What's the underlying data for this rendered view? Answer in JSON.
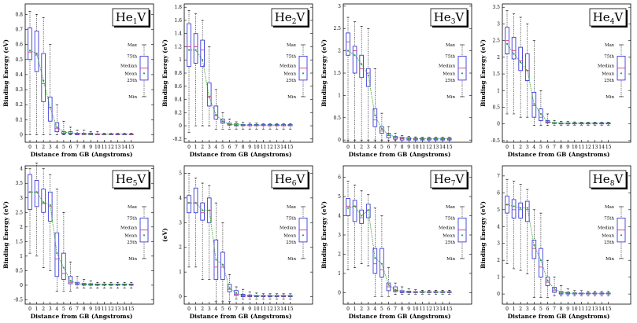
{
  "colors": {
    "box": "#3b3bd9",
    "median": "#d63a8a",
    "mean_line": "#2e9e2e",
    "whisker": "#000000"
  },
  "legend": {
    "max": "Max",
    "p75": "75th",
    "median": "Median",
    "mean": "Mean",
    "p25": "25th",
    "min": "Min"
  },
  "chart_data": [
    {
      "type": "box",
      "title": "He1V",
      "title_main": "He",
      "title_sub": "1",
      "title_tail": "V",
      "xlabel": "Distance from GB (Angstroms)",
      "ylabel": "Binding Energy (eV)",
      "x": [
        0,
        1,
        2,
        3,
        4,
        5,
        6,
        7,
        8,
        9,
        10,
        11,
        12,
        13,
        14,
        15
      ],
      "ylim": [
        -0.05,
        0.87
      ],
      "yticks": [
        0,
        0.1,
        0.2,
        0.3,
        0.4,
        0.5,
        0.6,
        0.7,
        0.8
      ],
      "ytick_labels": [
        "0",
        "0.1",
        "0.2",
        "0.3",
        "0.4",
        "0.5",
        "0.6",
        "0.7",
        "0.8"
      ],
      "min": [
        0,
        0,
        0,
        0,
        0,
        0,
        0,
        0,
        0,
        0,
        0,
        0,
        0,
        0,
        0,
        0
      ],
      "q1": [
        0.5,
        0.42,
        0.22,
        0.09,
        0.02,
        0.005,
        0.005,
        0,
        0,
        0,
        0,
        0,
        0,
        0,
        0,
        0
      ],
      "median": [
        0.55,
        0.53,
        0.34,
        0.18,
        0.04,
        0.01,
        0.01,
        0.005,
        0,
        0,
        0,
        0,
        0,
        0,
        0,
        0
      ],
      "mean": [
        0.56,
        0.54,
        0.36,
        0.18,
        0.05,
        0.02,
        0.01,
        0.01,
        0.005,
        0.005,
        0.005,
        0.005,
        0.005,
        0.005,
        0.005,
        0.005
      ],
      "q3": [
        0.71,
        0.69,
        0.54,
        0.25,
        0.08,
        0.02,
        0.02,
        0.01,
        0.01,
        0.01,
        0.005,
        0.005,
        0.005,
        0.005,
        0.005,
        0.005
      ],
      "max": [
        0.82,
        0.8,
        0.78,
        0.6,
        0.2,
        0.09,
        0.05,
        0.03,
        0.03,
        0.02,
        0.02,
        0.01,
        0.01,
        0.01,
        0.01,
        0.01
      ]
    },
    {
      "type": "box",
      "title": "He2V",
      "title_main": "He",
      "title_sub": "2",
      "title_tail": "V",
      "xlabel": "Distance from GB (Angstroms)",
      "ylabel": "Binding Energy (eV)",
      "x": [
        0,
        1,
        2,
        3,
        4,
        5,
        6,
        7,
        8,
        9,
        10,
        11,
        12,
        13,
        14,
        15
      ],
      "ylim": [
        -0.25,
        1.85
      ],
      "yticks": [
        -0.2,
        0,
        0.2,
        0.4,
        0.6,
        0.8,
        1,
        1.2,
        1.4,
        1.6,
        1.8
      ],
      "ytick_labels": [
        "-0.2",
        "0",
        "0.2",
        "0.4",
        "0.6",
        "0.8",
        "1",
        "1.2",
        "1.4",
        "1.6",
        "1.8"
      ],
      "min": [
        -0.1,
        0,
        0,
        0,
        -0.05,
        -0.05,
        -0.05,
        -0.05,
        -0.05,
        -0.05,
        -0.05,
        -0.05,
        -0.05,
        -0.05,
        -0.05,
        -0.05
      ],
      "q1": [
        0.9,
        0.95,
        0.9,
        0.3,
        0.1,
        0.04,
        0.01,
        0,
        0,
        0,
        0,
        0,
        0,
        0,
        0,
        0
      ],
      "median": [
        1.2,
        1.2,
        1.15,
        0.45,
        0.15,
        0.06,
        0.02,
        0.01,
        0,
        0,
        0,
        0,
        0,
        0,
        0,
        0
      ],
      "mean": [
        1.15,
        1.15,
        1.0,
        0.43,
        0.17,
        0.07,
        0.02,
        0.02,
        0.01,
        0.01,
        0.01,
        0.01,
        0.01,
        0.01,
        0.01,
        0.01
      ],
      "q3": [
        1.55,
        1.4,
        1.3,
        0.65,
        0.3,
        0.1,
        0.04,
        0.03,
        0.02,
        0.02,
        0.02,
        0.02,
        0.02,
        0.02,
        0.02,
        0.02
      ],
      "max": [
        1.75,
        1.7,
        1.6,
        1.2,
        0.55,
        0.2,
        0.1,
        0.06,
        0.05,
        0.04,
        0.04,
        0.03,
        0.03,
        0.03,
        0.03,
        0.03
      ]
    },
    {
      "type": "box",
      "title": "He3V",
      "title_main": "He",
      "title_sub": "3",
      "title_tail": "V",
      "xlabel": "Distance from GB (Angstroms)",
      "ylabel": "Binding Energy (eV)",
      "x": [
        0,
        1,
        2,
        3,
        4,
        5,
        6,
        7,
        8,
        9,
        10,
        11,
        12,
        13,
        14,
        15
      ],
      "ylim": [
        -0.05,
        3.05
      ],
      "yticks": [
        0,
        0.5,
        1,
        1.5,
        2,
        2.5,
        3
      ],
      "ytick_labels": [
        "0",
        "0.5",
        "1",
        "1.5",
        "2",
        "2.5",
        "3"
      ],
      "min": [
        0,
        0,
        0,
        0,
        0,
        0,
        0,
        0,
        0,
        0,
        0,
        0,
        0,
        0,
        0,
        0
      ],
      "q1": [
        1.9,
        1.5,
        1.4,
        1.2,
        0.3,
        0.15,
        0.05,
        0.02,
        0,
        0,
        0,
        0,
        0,
        0,
        0,
        0
      ],
      "median": [
        2.2,
        2.0,
        1.6,
        1.5,
        0.45,
        0.2,
        0.1,
        0.05,
        0.03,
        0.02,
        0.02,
        0.02,
        0.02,
        0.02,
        0.02,
        0.02
      ],
      "mean": [
        2.0,
        1.9,
        1.7,
        1.45,
        0.55,
        0.25,
        0.12,
        0.07,
        0.05,
        0.04,
        0.03,
        0.03,
        0.03,
        0.03,
        0.03,
        0.03
      ],
      "q3": [
        2.4,
        2.1,
        1.9,
        1.6,
        0.7,
        0.3,
        0.15,
        0.08,
        0.06,
        0.05,
        0.04,
        0.04,
        0.04,
        0.04,
        0.04,
        0.04
      ],
      "max": [
        2.75,
        2.65,
        2.55,
        2.5,
        1.6,
        0.6,
        0.3,
        0.15,
        0.1,
        0.08,
        0.07,
        0.06,
        0.06,
        0.06,
        0.06,
        0.06
      ]
    },
    {
      "type": "box",
      "title": "He4V",
      "title_main": "He",
      "title_sub": "4",
      "title_tail": "V",
      "xlabel": "Distance from GB (Angstroms)",
      "ylabel": "Binding Energy (eV)",
      "x": [
        0,
        1,
        2,
        3,
        4,
        5,
        6,
        7,
        8,
        9,
        10,
        11,
        12,
        13,
        14,
        15
      ],
      "ylim": [
        -0.55,
        3.6
      ],
      "yticks": [
        -0.5,
        0,
        0.5,
        1,
        1.5,
        2,
        2.5,
        3,
        3.5
      ],
      "ytick_labels": [
        "-0.5",
        "0",
        "0.5",
        "1",
        "1.5",
        "2",
        "2.5",
        "3",
        "3.5"
      ],
      "min": [
        0.3,
        0.3,
        0.2,
        0.2,
        -0.05,
        -0.05,
        -0.05,
        -0.05,
        -0.05,
        -0.05,
        -0.05,
        -0.05,
        -0.05,
        -0.05,
        -0.05,
        -0.05
      ],
      "q1": [
        2.1,
        1.95,
        1.6,
        1.3,
        0.2,
        0.1,
        0.03,
        0.01,
        0,
        0,
        0,
        0,
        0,
        0,
        0,
        0
      ],
      "median": [
        2.5,
        2.2,
        1.9,
        1.6,
        0.55,
        0.2,
        0.05,
        0.02,
        0.01,
        0.01,
        0.01,
        0.01,
        0.01,
        0.01,
        0.01,
        0.01
      ],
      "mean": [
        2.4,
        2.1,
        1.85,
        1.6,
        0.6,
        0.3,
        0.07,
        0.03,
        0.02,
        0.02,
        0.02,
        0.02,
        0.02,
        0.02,
        0.02,
        0.02
      ],
      "q3": [
        2.9,
        2.6,
        2.3,
        2.1,
        0.95,
        0.45,
        0.1,
        0.04,
        0.03,
        0.03,
        0.03,
        0.03,
        0.03,
        0.03,
        0.03,
        0.03
      ],
      "max": [
        3.4,
        3.3,
        3.2,
        3.0,
        2.5,
        1.0,
        0.3,
        0.1,
        0.08,
        0.07,
        0.06,
        0.05,
        0.05,
        0.05,
        0.05,
        0.05
      ]
    },
    {
      "type": "box",
      "title": "He5V",
      "title_main": "He",
      "title_sub": "5",
      "title_tail": "V",
      "xlabel": "Distance from GB (Angstroms)",
      "ylabel": "Binding Energy (eV)",
      "x": [
        0,
        1,
        2,
        3,
        4,
        5,
        6,
        7,
        8,
        9,
        10,
        11,
        12,
        13,
        14,
        15
      ],
      "ylim": [
        -0.65,
        4.1
      ],
      "yticks": [
        -0.5,
        0,
        0.5,
        1,
        1.5,
        2,
        2.5,
        3,
        3.5,
        4
      ],
      "ytick_labels": [
        "-0.5",
        "0",
        "0.5",
        "1",
        "1.5",
        "2",
        "2.5",
        "3",
        "3.5",
        "4"
      ],
      "min": [
        1.1,
        1.0,
        0.6,
        0.5,
        -0.2,
        -0.2,
        -0.2,
        -0.1,
        -0.1,
        -0.1,
        -0.1,
        -0.1,
        -0.1,
        -0.1,
        -0.1,
        -0.1
      ],
      "q1": [
        2.6,
        2.7,
        2.5,
        2.2,
        0.3,
        0.2,
        0.05,
        0.02,
        0,
        0,
        0,
        0,
        0,
        0,
        0,
        0
      ],
      "median": [
        3.2,
        3.2,
        2.8,
        2.7,
        0.9,
        0.4,
        0.1,
        0.05,
        0.02,
        0.02,
        0.02,
        0.02,
        0.02,
        0.02,
        0.02,
        0.02
      ],
      "mean": [
        3.2,
        3.2,
        2.85,
        2.75,
        1.1,
        0.6,
        0.15,
        0.06,
        0.03,
        0.03,
        0.03,
        0.03,
        0.03,
        0.03,
        0.03,
        0.03
      ],
      "q3": [
        3.8,
        3.6,
        3.3,
        3.2,
        1.8,
        1.1,
        0.3,
        0.1,
        0.06,
        0.05,
        0.04,
        0.04,
        0.04,
        0.04,
        0.04,
        0.04
      ],
      "max": [
        4.0,
        4.2,
        4.0,
        3.8,
        3.3,
        2.5,
        0.8,
        0.3,
        0.2,
        0.15,
        0.1,
        0.1,
        0.1,
        0.1,
        0.1,
        0.1
      ]
    },
    {
      "type": "box",
      "title": "He6V",
      "title_main": "He",
      "title_sub": "6",
      "title_tail": "V",
      "xlabel": "Distance from GB (Angstroms)",
      "ylabel": "(eV)",
      "x": [
        0,
        1,
        2,
        3,
        4,
        5,
        6,
        7,
        8,
        9,
        10,
        11,
        12,
        13,
        14,
        15
      ],
      "ylim": [
        -0.3,
        5.3
      ],
      "yticks": [
        0,
        1,
        2,
        3,
        4,
        5
      ],
      "ytick_labels": [
        "0",
        "1",
        "2",
        "3",
        "4",
        "5"
      ],
      "min": [
        1.2,
        1.2,
        0.7,
        0.7,
        -0.2,
        -0.2,
        -0.2,
        -0.1,
        -0.1,
        -0.1,
        -0.1,
        -0.1,
        -0.1,
        -0.1,
        -0.1,
        -0.1
      ],
      "q1": [
        3.4,
        3.4,
        3.1,
        3.0,
        0.7,
        0.7,
        0.2,
        0.05,
        0,
        0,
        0,
        0,
        0,
        0,
        0,
        0
      ],
      "median": [
        3.8,
        3.8,
        3.4,
        3.5,
        1.2,
        1.2,
        0.3,
        0.1,
        0.03,
        0.02,
        0.02,
        0.02,
        0.02,
        0.02,
        0.02,
        0.02
      ],
      "mean": [
        3.8,
        3.8,
        3.5,
        3.5,
        1.5,
        1.3,
        0.35,
        0.15,
        0.05,
        0.04,
        0.03,
        0.03,
        0.03,
        0.03,
        0.03,
        0.03
      ],
      "q3": [
        4.1,
        4.4,
        3.8,
        4.0,
        2.3,
        1.8,
        0.5,
        0.25,
        0.1,
        0.07,
        0.05,
        0.05,
        0.05,
        0.05,
        0.05,
        0.05
      ],
      "max": [
        5.0,
        4.8,
        4.6,
        4.5,
        3.8,
        3.0,
        0.9,
        0.4,
        0.3,
        0.2,
        0.15,
        0.12,
        0.12,
        0.12,
        0.12,
        0.12
      ]
    },
    {
      "type": "box",
      "title": "He7V",
      "title_main": "He",
      "title_sub": "7",
      "title_tail": "V",
      "xlabel": "Distance from GB (Angstroms)",
      "ylabel": "Binding Energy (eV)",
      "x": [
        0,
        1,
        2,
        3,
        4,
        5,
        6,
        7,
        8,
        9,
        10,
        11,
        12,
        13,
        14,
        15
      ],
      "ylim": [
        -0.6,
        6.6
      ],
      "yticks": [
        0,
        1,
        2,
        3,
        4,
        5,
        6
      ],
      "ytick_labels": [
        "0",
        "1",
        "2",
        "3",
        "4",
        "5",
        "6"
      ],
      "min": [
        1.2,
        1.3,
        1.5,
        1.4,
        -0.2,
        -0.2,
        -0.2,
        -0.1,
        -0.1,
        -0.1,
        -0.1,
        -0.1,
        -0.1,
        -0.1,
        -0.1,
        -0.1
      ],
      "q1": [
        4.0,
        3.7,
        3.6,
        3.9,
        1.0,
        0.8,
        0.1,
        0.05,
        0,
        0,
        0,
        0,
        0,
        0,
        0,
        0
      ],
      "median": [
        4.5,
        4.5,
        3.9,
        4.3,
        1.5,
        1.2,
        0.3,
        0.1,
        0.03,
        0.02,
        0.02,
        0.02,
        0.02,
        0.02,
        0.02,
        0.02
      ],
      "mean": [
        4.4,
        4.5,
        4.0,
        4.3,
        1.8,
        1.5,
        0.4,
        0.15,
        0.05,
        0.04,
        0.03,
        0.03,
        0.03,
        0.03,
        0.03,
        0.03
      ],
      "q3": [
        4.9,
        4.8,
        4.3,
        4.6,
        2.3,
        2.3,
        0.5,
        0.3,
        0.1,
        0.07,
        0.05,
        0.05,
        0.05,
        0.05,
        0.05,
        0.05
      ],
      "max": [
        5.8,
        5.6,
        5.3,
        5.1,
        4.4,
        4.0,
        1.3,
        0.5,
        0.3,
        0.2,
        0.15,
        0.12,
        0.12,
        0.12,
        0.12,
        0.12
      ]
    },
    {
      "type": "box",
      "title": "He8V",
      "title_main": "He",
      "title_sub": "8",
      "title_tail": "V",
      "xlabel": "Distance from GB (Angstroms)",
      "ylabel": "Binding Energy (eV)",
      "x": [
        0,
        1,
        2,
        3,
        4,
        5,
        6,
        7,
        8,
        9,
        10,
        11,
        12,
        13,
        14,
        15
      ],
      "ylim": [
        -0.6,
        7.6
      ],
      "yticks": [
        0,
        1,
        2,
        3,
        4,
        5,
        6,
        7
      ],
      "ytick_labels": [
        "0",
        "1",
        "2",
        "3",
        "4",
        "5",
        "6",
        "7"
      ],
      "min": [
        1.8,
        1.5,
        1.4,
        1.2,
        -0.2,
        -0.2,
        -0.2,
        -0.1,
        -0.1,
        -0.1,
        -0.1,
        -0.1,
        -0.1,
        -0.1,
        -0.1,
        -0.1
      ],
      "q1": [
        4.8,
        4.5,
        4.5,
        4.3,
        2.1,
        1.0,
        0.5,
        0.1,
        0,
        0,
        0,
        0,
        0,
        0,
        0,
        0
      ],
      "median": [
        5.3,
        5.0,
        5.0,
        5.0,
        2.7,
        1.6,
        0.7,
        0.2,
        0.05,
        0.03,
        0.02,
        0.02,
        0.02,
        0.02,
        0.02,
        0.02
      ],
      "mean": [
        5.3,
        5.2,
        5.1,
        5.1,
        2.9,
        2.0,
        0.8,
        0.3,
        0.1,
        0.05,
        0.04,
        0.04,
        0.04,
        0.04,
        0.04,
        0.04
      ],
      "q3": [
        5.8,
        5.6,
        5.4,
        5.5,
        3.2,
        2.7,
        1.0,
        0.4,
        0.15,
        0.1,
        0.07,
        0.06,
        0.06,
        0.06,
        0.06,
        0.06
      ],
      "max": [
        6.8,
        6.7,
        6.5,
        6.2,
        5.0,
        4.8,
        2.0,
        1.0,
        0.5,
        0.3,
        0.2,
        0.2,
        0.15,
        0.15,
        0.15,
        0.15
      ]
    }
  ]
}
